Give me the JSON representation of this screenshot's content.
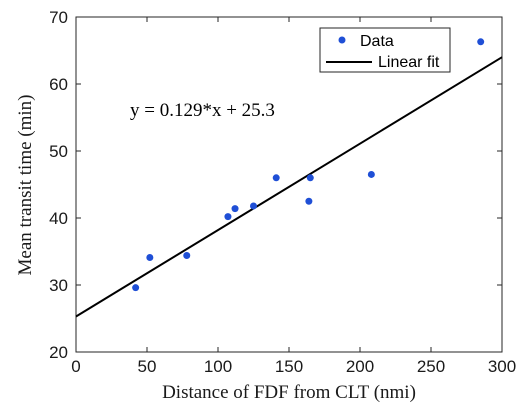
{
  "chart_data": {
    "type": "scatter",
    "xlabel": "Distance of FDF from CLT (nmi)",
    "ylabel": "Mean transit time (min)",
    "xlim": [
      0,
      300
    ],
    "ylim": [
      20,
      70
    ],
    "xticks": [
      "0",
      "50",
      "100",
      "150",
      "200",
      "250",
      "300"
    ],
    "yticks": [
      "20",
      "30",
      "40",
      "50",
      "60",
      "70"
    ],
    "grid": false,
    "legend_position": "top-right",
    "series": [
      {
        "name": "Data",
        "kind": "scatter",
        "color": "#1f4fd6",
        "x": [
          42,
          52,
          78,
          107,
          112,
          125,
          141,
          164,
          165,
          208,
          285
        ],
        "y": [
          29.6,
          34.1,
          34.4,
          40.2,
          41.4,
          41.8,
          46.0,
          42.5,
          46.0,
          46.5,
          66.3
        ]
      },
      {
        "name": "Linear fit",
        "kind": "line",
        "color": "#000000",
        "slope": 0.129,
        "intercept": 25.3
      }
    ],
    "annotation": "y = 0.129*x + 25.3"
  }
}
